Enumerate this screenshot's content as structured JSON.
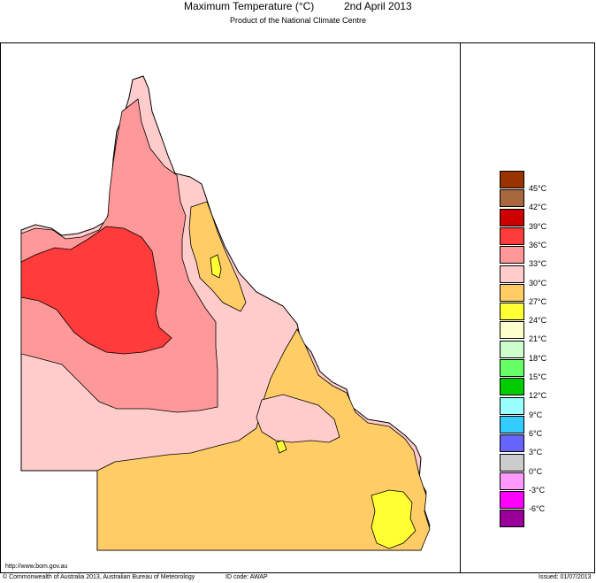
{
  "header": {
    "title": "Maximum Temperature (°C)",
    "date": "2nd April 2013",
    "subtitle": "Product of the National Climate Centre"
  },
  "legend": [
    {
      "label": "45°C",
      "color": "#993300"
    },
    {
      "label": "42°C",
      "color": "#a6683c"
    },
    {
      "label": "39°C",
      "color": "#cc0000"
    },
    {
      "label": "36°C",
      "color": "#ff3b3b"
    },
    {
      "label": "33°C",
      "color": "#ff9999"
    },
    {
      "label": "30°C",
      "color": "#ffcccc"
    },
    {
      "label": "27°C",
      "color": "#ffcc66"
    },
    {
      "label": "24°C",
      "color": "#ffff33"
    },
    {
      "label": "21°C",
      "color": "#ffffcc"
    },
    {
      "label": "18°C",
      "color": "#ccffcc"
    },
    {
      "label": "15°C",
      "color": "#66ff66"
    },
    {
      "label": "12°C",
      "color": "#00cc00"
    },
    {
      "label": "9°C",
      "color": "#99ffff"
    },
    {
      "label": "6°C",
      "color": "#33ccff"
    },
    {
      "label": "3°C",
      "color": "#6666ff"
    },
    {
      "label": "0°C",
      "color": "#cccccc"
    },
    {
      "label": "-3°C",
      "color": "#ff99ff"
    },
    {
      "label": "-6°C",
      "color": "#ff00ff"
    },
    {
      "label": "",
      "color": "#990099"
    }
  ],
  "footer": {
    "url": "http://www.bom.gov.au",
    "copyright": "© Commonwealth of Australia 2013, Australian Bureau of Meteorology",
    "id_code": "ID code: AWAP",
    "issued": "Issued: 01/07/2013"
  }
}
